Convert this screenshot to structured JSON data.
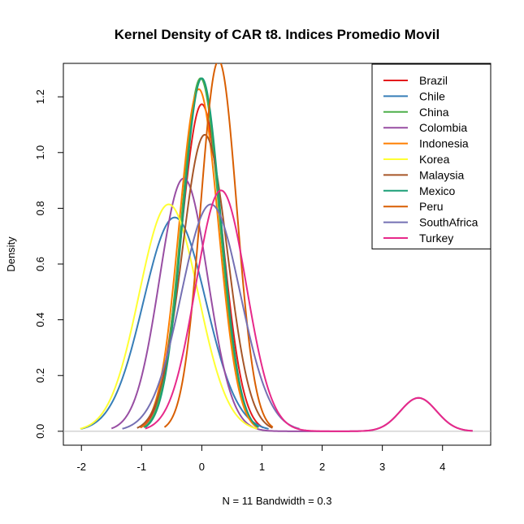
{
  "chart_data": {
    "type": "line",
    "title": "Kernel Density of CAR t8. Indices Promedio Movil",
    "xlabel": "N = 11   Bandwidth = 0.3",
    "ylabel": "Density",
    "xlim": [
      -2.3,
      4.8
    ],
    "ylim": [
      -0.05,
      1.32
    ],
    "xticks": [
      "-2",
      "-1",
      "0",
      "1",
      "2",
      "3",
      "4"
    ],
    "yticks": [
      "0.0",
      "0.2",
      "0.4",
      "0.6",
      "0.8",
      "1.0",
      "1.2"
    ],
    "legend_position": "top-right",
    "series": [
      {
        "name": "Brazil",
        "color": "#e41a1c",
        "components": [
          {
            "mu": 0.0,
            "sigma": 0.34,
            "w": 1.0
          }
        ]
      },
      {
        "name": "Chile",
        "color": "#377eb8",
        "components": [
          {
            "mu": -0.45,
            "sigma": 0.52,
            "w": 1.0
          }
        ]
      },
      {
        "name": "China",
        "color": "#4daf4a",
        "components": [
          {
            "mu": -0.02,
            "sigma": 0.315,
            "w": 1.0
          }
        ]
      },
      {
        "name": "Colombia",
        "color": "#984ea3",
        "components": [
          {
            "mu": -0.3,
            "sigma": 0.4,
            "w": 0.91
          },
          {
            "mu": 3.6,
            "sigma": 0.3,
            "w": 0.09
          }
        ]
      },
      {
        "name": "Indonesia",
        "color": "#ff7f00",
        "components": [
          {
            "mu": -0.05,
            "sigma": 0.325,
            "w": 1.0
          }
        ]
      },
      {
        "name": "Korea",
        "color": "#ffff33",
        "components": [
          {
            "mu": -0.55,
            "sigma": 0.49,
            "w": 1.0
          }
        ]
      },
      {
        "name": "Malaysia",
        "color": "#a65628",
        "components": [
          {
            "mu": 0.05,
            "sigma": 0.375,
            "w": 1.0
          }
        ]
      },
      {
        "name": "Mexico",
        "color": "#1b9e77",
        "components": [
          {
            "mu": 0.0,
            "sigma": 0.315,
            "w": 1.0
          }
        ]
      },
      {
        "name": "Peru",
        "color": "#d95f02",
        "components": [
          {
            "mu": 0.28,
            "sigma": 0.3,
            "w": 1.0
          }
        ]
      },
      {
        "name": "SouthAfrica",
        "color": "#7570b3",
        "components": [
          {
            "mu": 0.15,
            "sigma": 0.49,
            "w": 1.0
          }
        ]
      },
      {
        "name": "Turkey",
        "color": "#e7298a",
        "components": [
          {
            "mu": 0.32,
            "sigma": 0.42,
            "w": 0.91
          },
          {
            "mu": 3.6,
            "sigma": 0.3,
            "w": 0.09
          }
        ]
      }
    ]
  }
}
